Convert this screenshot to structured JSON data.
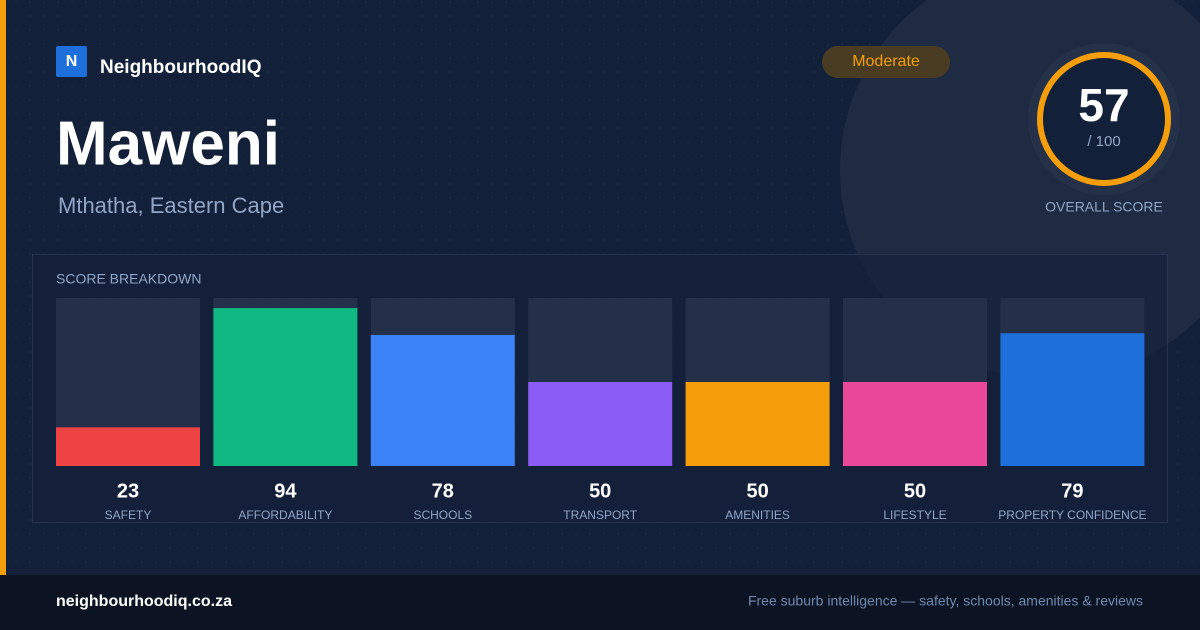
{
  "brand": {
    "logo": "N",
    "name": "NeighbourhoodIQ"
  },
  "badge": "Moderate",
  "title": "Maweni",
  "subtitle": "Mthatha, Eastern Cape",
  "score": {
    "value": 57,
    "max_label": "/ 100",
    "caption": "OVERALL SCORE"
  },
  "breakdown": {
    "title": "SCORE BREAKDOWN",
    "ylim": [
      0,
      100
    ],
    "items": [
      {
        "label": "SAFETY",
        "value": 23,
        "color": "#ef4444"
      },
      {
        "label": "AFFORDABILITY",
        "value": 94,
        "color": "#10b981"
      },
      {
        "label": "SCHOOLS",
        "value": 78,
        "color": "#3b82f6"
      },
      {
        "label": "TRANSPORT",
        "value": 50,
        "color": "#8b5cf6"
      },
      {
        "label": "AMENITIES",
        "value": 50,
        "color": "#f59e0b"
      },
      {
        "label": "LIFESTYLE",
        "value": 50,
        "color": "#ec4899"
      },
      {
        "label": "PROPERTY CONFIDENCE",
        "value": 79,
        "color": "#1d6fdc"
      }
    ]
  },
  "footer": {
    "site": "neighbourhoodiq.co.za",
    "tagline": "Free suburb intelligence — safety, schools, amenities & reviews"
  }
}
